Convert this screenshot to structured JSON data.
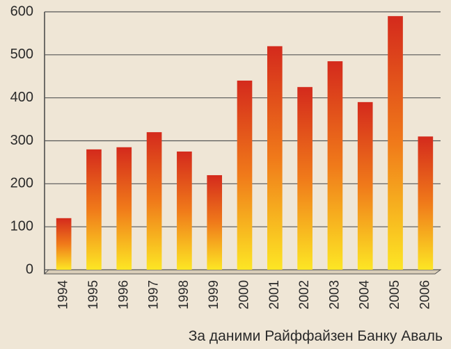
{
  "chart_data": {
    "type": "bar",
    "categories": [
      "1994",
      "1995",
      "1996",
      "1997",
      "1998",
      "1999",
      "2000",
      "2001",
      "2002",
      "2003",
      "2004",
      "2005",
      "2006"
    ],
    "values": [
      120,
      280,
      285,
      320,
      275,
      220,
      440,
      520,
      425,
      485,
      390,
      590,
      310
    ],
    "color": [
      "#d42a1c",
      "#f07a1a",
      "#fde624"
    ],
    "ylim": [
      0,
      600
    ],
    "yticks": [
      0,
      100,
      200,
      300,
      400,
      500,
      600
    ],
    "grid": true,
    "source": "За даними Райффайзен Банку Аваль"
  }
}
